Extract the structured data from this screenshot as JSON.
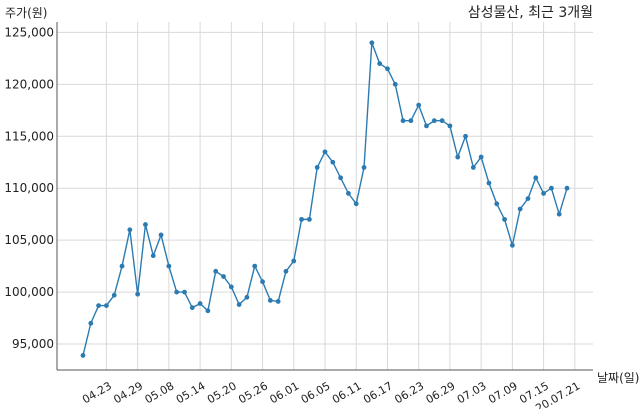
{
  "chart_data": {
    "type": "line",
    "title": "삼성물산, 최근 3개월",
    "ylabel": "주가(원)",
    "xlabel": "날짜(일)",
    "ylim": [
      92500,
      126000
    ],
    "y_ticks": [
      95000,
      100000,
      105000,
      110000,
      115000,
      120000,
      125000
    ],
    "y_tick_labels": [
      "95,000",
      "100,000",
      "105,000",
      "110,000",
      "115,000",
      "120,000",
      "125,000"
    ],
    "x_tick_labels": [
      "04.23",
      "04.29",
      "05.08",
      "05.14",
      "05.20",
      "05.26",
      "06.01",
      "06.05",
      "06.11",
      "06.17",
      "06.23",
      "06.29",
      "07.03",
      "07.09",
      "07.15",
      "20.07.21"
    ],
    "x_tick_index": [
      3,
      7,
      11,
      15,
      19,
      23,
      27,
      31,
      35,
      39,
      43,
      47,
      51,
      55,
      59,
      63
    ],
    "grid": true,
    "series": [
      {
        "values": [
          93900,
          97000,
          98700,
          98700,
          99700,
          102500,
          106000,
          99800,
          106500,
          103500,
          105500,
          102500,
          100000,
          100000,
          98500,
          98900,
          98200,
          102000,
          101500,
          100500,
          98800,
          99500,
          102500,
          101000,
          99200,
          99100,
          102000,
          103000,
          107000,
          107000,
          112000,
          113500,
          112500,
          111000,
          109500,
          108500,
          112000,
          124000,
          122000,
          121500,
          120000,
          116500,
          116500,
          118000,
          116000,
          116500,
          116500,
          116000,
          113000,
          115000,
          112000,
          113000,
          110500,
          108500,
          107000,
          104500,
          108000,
          109000,
          111000,
          109500,
          110000,
          107500,
          110000
        ]
      }
    ]
  }
}
